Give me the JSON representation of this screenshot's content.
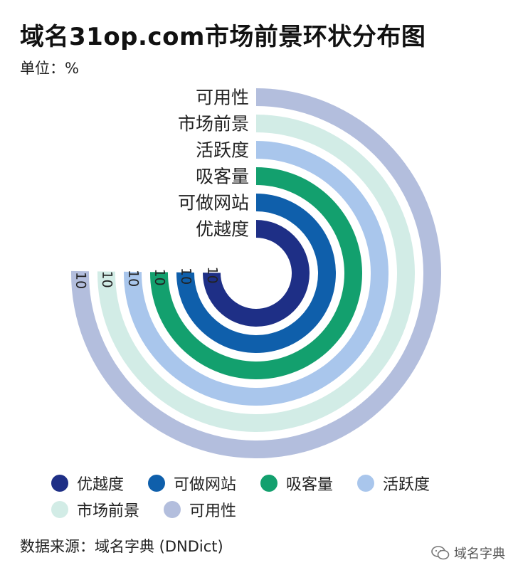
{
  "header": {
    "title": "域名31op.com市场前景环状分布图",
    "unit": "单位：%"
  },
  "chart_data": {
    "type": "radial-bar",
    "max": 13.3,
    "categories": [
      "优越度",
      "可做网站",
      "吸客量",
      "活跃度",
      "市场前景",
      "可用性"
    ],
    "values": [
      10,
      10,
      10,
      10,
      10,
      10
    ],
    "colors": [
      "#1e2f86",
      "#0f5fab",
      "#13a06e",
      "#a9c6ec",
      "#d2ece6",
      "#b3bedd"
    ],
    "legend_position": "bottom"
  },
  "legend": {
    "items": [
      {
        "label": "优越度",
        "color": "#1e2f86"
      },
      {
        "label": "可做网站",
        "color": "#0f5fab"
      },
      {
        "label": "吸客量",
        "color": "#13a06e"
      },
      {
        "label": "活跃度",
        "color": "#a9c6ec"
      },
      {
        "label": "市场前景",
        "color": "#d2ece6"
      },
      {
        "label": "可用性",
        "color": "#b3bedd"
      }
    ]
  },
  "footer": {
    "source": "数据来源：域名字典 (DNDict)",
    "watermark": "域名字典",
    "watermark_icon": "wechat-icon"
  }
}
